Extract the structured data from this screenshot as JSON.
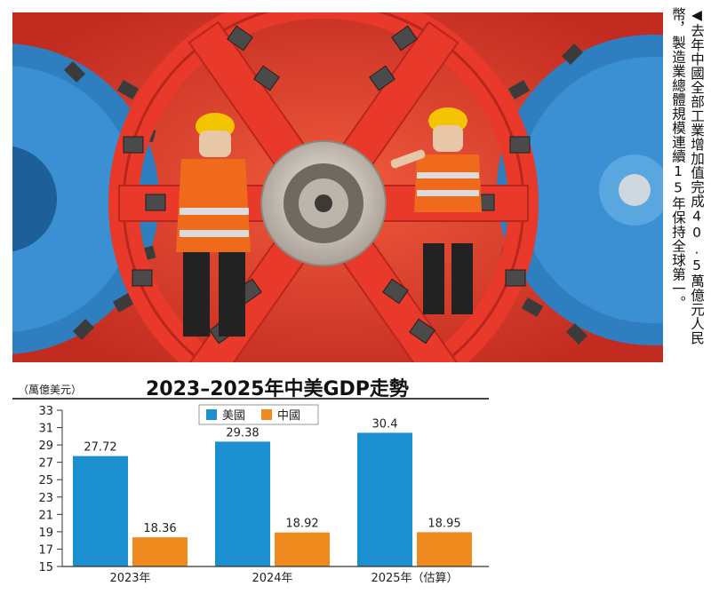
{
  "caption": "◀去年中國全部工業增加值完成40.5萬億元人民幣，製造業總體規模連續15年保持全球第一。",
  "chart_data": {
    "type": "bar",
    "title": "2023–2025年中美GDP走勢",
    "unit": "（萬億美元）",
    "categories": [
      "2023年",
      "2024年",
      "2025年（估算）"
    ],
    "series": [
      {
        "name": "美國",
        "color": "#1b8fd0",
        "values": [
          27.72,
          29.38,
          30.4
        ],
        "labels": [
          "27.72",
          "29.38",
          "30.4"
        ]
      },
      {
        "name": "中國",
        "color": "#ef8a1e",
        "values": [
          18.36,
          18.92,
          18.95
        ],
        "labels": [
          "18.36",
          "18.92",
          "18.95"
        ]
      }
    ],
    "ylim": [
      15,
      33
    ],
    "yticks": [
      "33",
      "31",
      "29",
      "27",
      "25",
      "23",
      "21",
      "19",
      "17",
      "15"
    ],
    "legend": "top-center"
  },
  "photo": {
    "colors": {
      "wheel": "#e8392a",
      "wheel_dark": "#b8261d",
      "cutter_blue": "#2f7fc0",
      "hub": "#d9d2c8",
      "helmet": "#f2c500",
      "vest": "#f06a1c"
    },
    "icon": "tunnel-boring-machine-cutterhead-with-two-workers"
  }
}
